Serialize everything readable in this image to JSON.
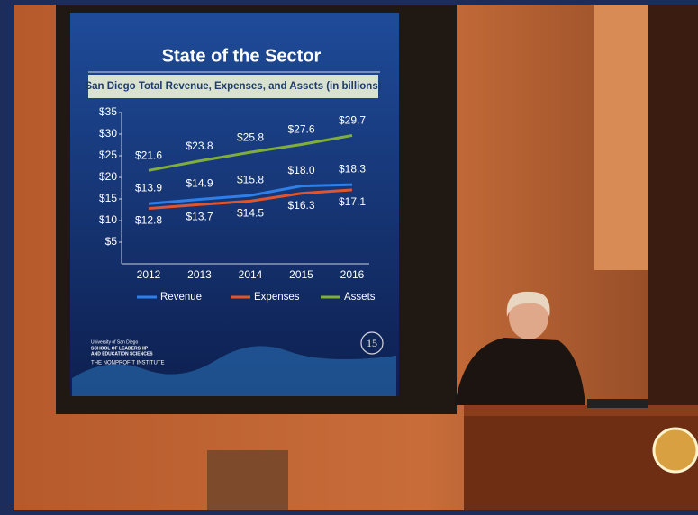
{
  "chart_data": {
    "type": "line",
    "title": "State of the Sector",
    "subtitle": "San Diego Total Revenue, Expenses, and Assets (in billions)",
    "categories": [
      "2012",
      "2013",
      "2014",
      "2015",
      "2016"
    ],
    "series": [
      {
        "name": "Revenue",
        "color": "#2f7fe8",
        "values": [
          13.9,
          14.9,
          15.8,
          18.0,
          18.3
        ],
        "value_labels": [
          "$13.9",
          "$14.9",
          "$15.8",
          "$18.0",
          "$18.3"
        ]
      },
      {
        "name": "Expenses",
        "color": "#e0552e",
        "values": [
          12.8,
          13.7,
          14.5,
          16.3,
          17.1
        ],
        "value_labels": [
          "$12.8",
          "$13.7",
          "$14.5",
          "$16.3",
          "$17.1"
        ]
      },
      {
        "name": "Assets",
        "color": "#7fae3a",
        "values": [
          21.6,
          23.8,
          25.8,
          27.6,
          29.7
        ],
        "value_labels": [
          "$21.6",
          "$23.8",
          "$25.8",
          "$27.6",
          "$29.7"
        ]
      }
    ],
    "ylim": [
      0,
      35
    ],
    "yticks": [
      {
        "value": 5,
        "label": "$5"
      },
      {
        "value": 10,
        "label": "$10"
      },
      {
        "value": 15,
        "label": "$15"
      },
      {
        "value": 20,
        "label": "$20"
      },
      {
        "value": 25,
        "label": "$25"
      },
      {
        "value": 30,
        "label": "$30"
      },
      {
        "value": 35,
        "label": "$35"
      }
    ],
    "grid": false,
    "legend": "bottom"
  },
  "logo": {
    "lines": [
      "University of San Diego",
      "SCHOOL OF LEADERSHIP",
      "AND EDUCATION SCIENCES",
      "THE NONPROFIT INSTITUTE"
    ],
    "badge": "15"
  }
}
